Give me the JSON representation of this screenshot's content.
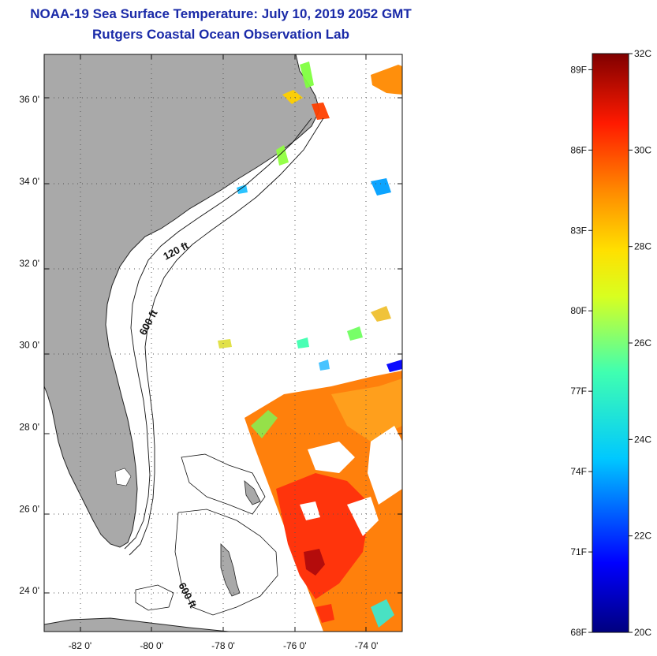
{
  "header": {
    "title": "NOAA-19 Sea Surface Temperature:  July 10, 2019 2052 GMT",
    "subtitle": "Rutgers Coastal Ocean Observation Lab"
  },
  "axes": {
    "lat_ticks": [
      {
        "value": 36,
        "label": "36 0'"
      },
      {
        "value": 34,
        "label": "34 0'"
      },
      {
        "value": 32,
        "label": "32 0'"
      },
      {
        "value": 30,
        "label": "30 0'"
      },
      {
        "value": 28,
        "label": "28 0'"
      },
      {
        "value": 26,
        "label": "26 0'"
      },
      {
        "value": 24,
        "label": "24 0'"
      }
    ],
    "lon_ticks": [
      {
        "value": -82,
        "label": "-82 0'"
      },
      {
        "value": -80,
        "label": "-80 0'"
      },
      {
        "value": -78,
        "label": "-78 0'"
      },
      {
        "value": -76,
        "label": "-76 0'"
      },
      {
        "value": -74,
        "label": "-74 0'"
      }
    ],
    "lat_range": [
      23.0,
      37.1
    ],
    "lon_range": [
      -83.0,
      -73.0
    ]
  },
  "contours": {
    "c120": "120 ft",
    "c600": "600 ft",
    "c600b": "600 ft"
  },
  "colorbar": {
    "celsius": [
      {
        "value": 32,
        "label": "32C"
      },
      {
        "value": 30,
        "label": "30C"
      },
      {
        "value": 28,
        "label": "28C"
      },
      {
        "value": 26,
        "label": "26C"
      },
      {
        "value": 24,
        "label": "24C"
      },
      {
        "value": 22,
        "label": "22C"
      },
      {
        "value": 20,
        "label": "20C"
      }
    ],
    "fahrenheit": [
      {
        "value": 89,
        "label": "89F"
      },
      {
        "value": 86,
        "label": "86F"
      },
      {
        "value": 83,
        "label": "83F"
      },
      {
        "value": 80,
        "label": "80F"
      },
      {
        "value": 77,
        "label": "77F"
      },
      {
        "value": 74,
        "label": "74F"
      },
      {
        "value": 71,
        "label": "71F"
      },
      {
        "value": 68,
        "label": "68F"
      }
    ],
    "range_c": [
      20,
      32
    ]
  },
  "colors": {
    "land": "#a9a9a9",
    "ocean": "#ffffff",
    "title": "#1a2aa8",
    "grid": "#555555"
  }
}
